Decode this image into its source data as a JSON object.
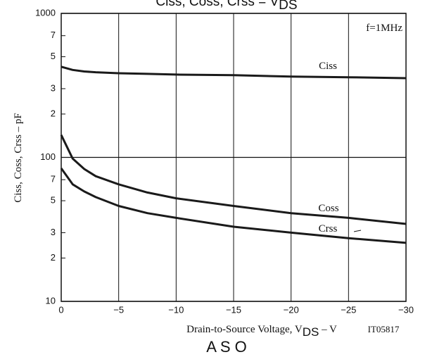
{
  "chart_data": {
    "type": "line",
    "title": [
      "Ciss,  Coss,  Crss  =  V",
      "DS"
    ],
    "xlabel": [
      "Drain-to-Source Voltage, V",
      "DS",
      "  –  V"
    ],
    "ylabel": "Ciss, Coss, Crss  –  pF",
    "x": [
      0,
      -1,
      -2,
      -3,
      -5,
      -7.5,
      -10,
      -15,
      -20,
      -25,
      -30
    ],
    "series": [
      {
        "name": "Ciss",
        "color": "#1a1a1a",
        "values": [
          426,
          405,
          395,
          390,
          384,
          380,
          376,
          372,
          364,
          360,
          355
        ]
      },
      {
        "name": "Coss",
        "color": "#1a1a1a",
        "values": [
          143,
          98,
          83,
          74,
          65,
          57,
          52,
          46,
          41,
          38,
          34.5
        ]
      },
      {
        "name": "Crss",
        "color": "#1a1a1a",
        "values": [
          84,
          65,
          58,
          53,
          46,
          41,
          38,
          33,
          30,
          27.5,
          25.5
        ]
      }
    ],
    "log_y": true,
    "grid": true,
    "xlim": [
      0,
      -30
    ],
    "xticks": [
      0,
      {
        "value": -5,
        "label": "−5"
      },
      {
        "value": -10,
        "label": "−10"
      },
      {
        "value": -15,
        "label": "−15"
      },
      {
        "value": -20,
        "label": "−20"
      },
      {
        "value": -25,
        "label": "−25"
      },
      {
        "value": -30,
        "label": "−30"
      }
    ],
    "ylim": [
      10,
      1000
    ],
    "yticks": [
      10,
      {
        "value": 20,
        "label": "2"
      },
      {
        "value": 30,
        "label": "3"
      },
      {
        "value": 50,
        "label": "5"
      },
      {
        "value": 70,
        "label": "7"
      },
      100,
      {
        "value": 200,
        "label": "2"
      },
      {
        "value": 300,
        "label": "3"
      },
      {
        "value": 500,
        "label": "5"
      },
      {
        "value": 700,
        "label": "7"
      },
      1000
    ],
    "annotations": [
      "f=1MHz",
      "IT05817",
      "A S O"
    ]
  }
}
